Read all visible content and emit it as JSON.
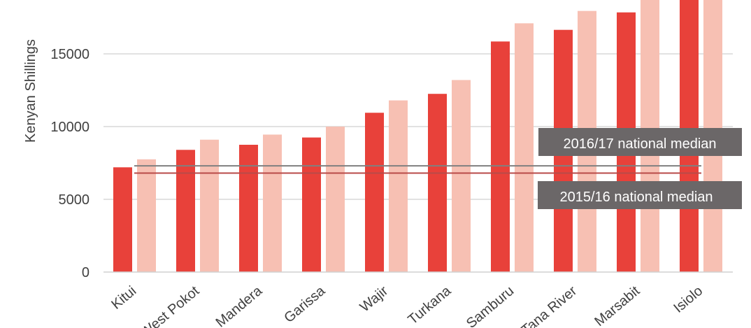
{
  "chart_data": {
    "type": "bar",
    "ylabel": "Kenyan Shillings",
    "ylim": [
      0,
      18500
    ],
    "yticks": [
      0,
      5000,
      10000,
      15000
    ],
    "grid": true,
    "categories": [
      "Kitui",
      "West Pokot",
      "Mandera",
      "Garissa",
      "Wajir",
      "Turkana",
      "Samburu",
      "Tana River",
      "Marsabit",
      "Isiolo"
    ],
    "series": [
      {
        "name": "2015/16",
        "color": "#e8413a",
        "values": [
          7200,
          8400,
          8750,
          9250,
          10950,
          12250,
          15850,
          16650,
          17850,
          19500
        ]
      },
      {
        "name": "2016/17",
        "color": "#f7c0b3",
        "values": [
          7750,
          9100,
          9450,
          10000,
          11800,
          13200,
          17100,
          17950,
          19500,
          20500
        ]
      }
    ],
    "reference_lines": [
      {
        "label": "2016/17 national median",
        "value": 7300,
        "color": "#808080"
      },
      {
        "label": "2015/16 national median",
        "value": 6800,
        "color": "#b84a48"
      }
    ]
  }
}
